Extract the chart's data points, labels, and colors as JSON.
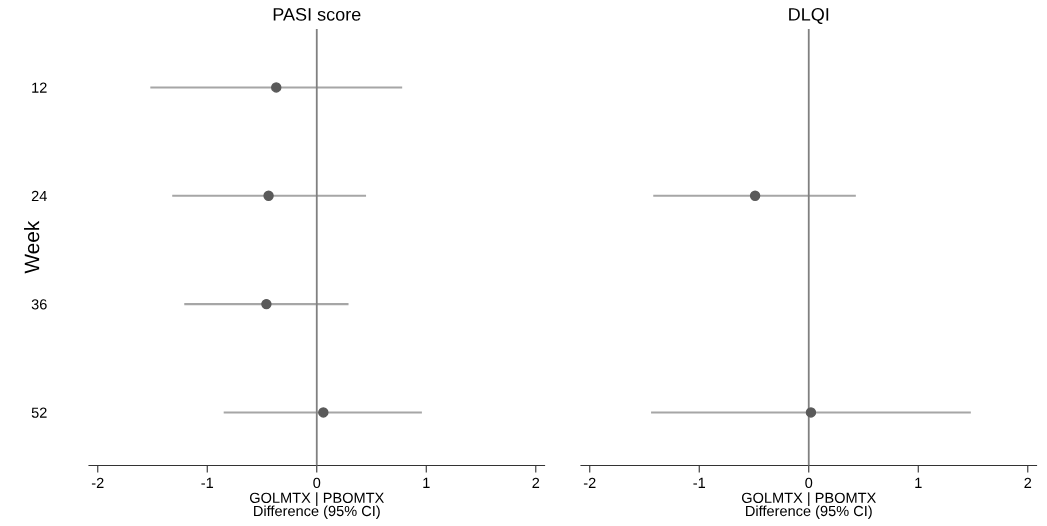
{
  "chart_data": [
    {
      "type": "scatter",
      "title": "PASI score",
      "ylabel": "Week",
      "xlabel": "GOLMTX | PBOMTX\nDifference (95% CI)",
      "orientation": "horizontal",
      "categories": [
        "12",
        "24",
        "36",
        "52"
      ],
      "series": [
        {
          "color": "#5a5a5a",
          "values": [
            -0.37,
            -0.44,
            -0.46,
            0.06
          ],
          "errors": [
            [
              -1.52,
              0.78
            ],
            [
              -1.32,
              0.45
            ],
            [
              -1.21,
              0.29
            ],
            [
              -0.85,
              0.96
            ]
          ]
        }
      ],
      "xlim": [
        -2.08,
        2.08
      ],
      "xticks": [
        -2,
        -1,
        0,
        1,
        2
      ],
      "ref_lines": [
        {
          "axis": "x",
          "value": 0,
          "color": "#808080"
        }
      ],
      "marker": "circle",
      "grid": false,
      "legend": false
    },
    {
      "type": "scatter",
      "title": "DLQI",
      "xlabel": "GOLMTX | PBOMTX\nDifference (95% CI)",
      "orientation": "horizontal",
      "categories": [
        "12",
        "24",
        "36",
        "52"
      ],
      "series": [
        {
          "color": "#5a5a5a",
          "values": [
            null,
            -0.49,
            null,
            0.02
          ],
          "errors": [
            null,
            [
              -1.42,
              0.43
            ],
            null,
            [
              -1.44,
              1.48
            ]
          ]
        }
      ],
      "xlim": [
        -2.08,
        2.08
      ],
      "xticks": [
        -2,
        -1,
        0,
        1,
        2
      ],
      "ref_lines": [
        {
          "axis": "x",
          "value": 0,
          "color": "#808080"
        }
      ],
      "marker": "circle",
      "grid": false,
      "legend": false,
      "tick_labels": "x"
    }
  ]
}
